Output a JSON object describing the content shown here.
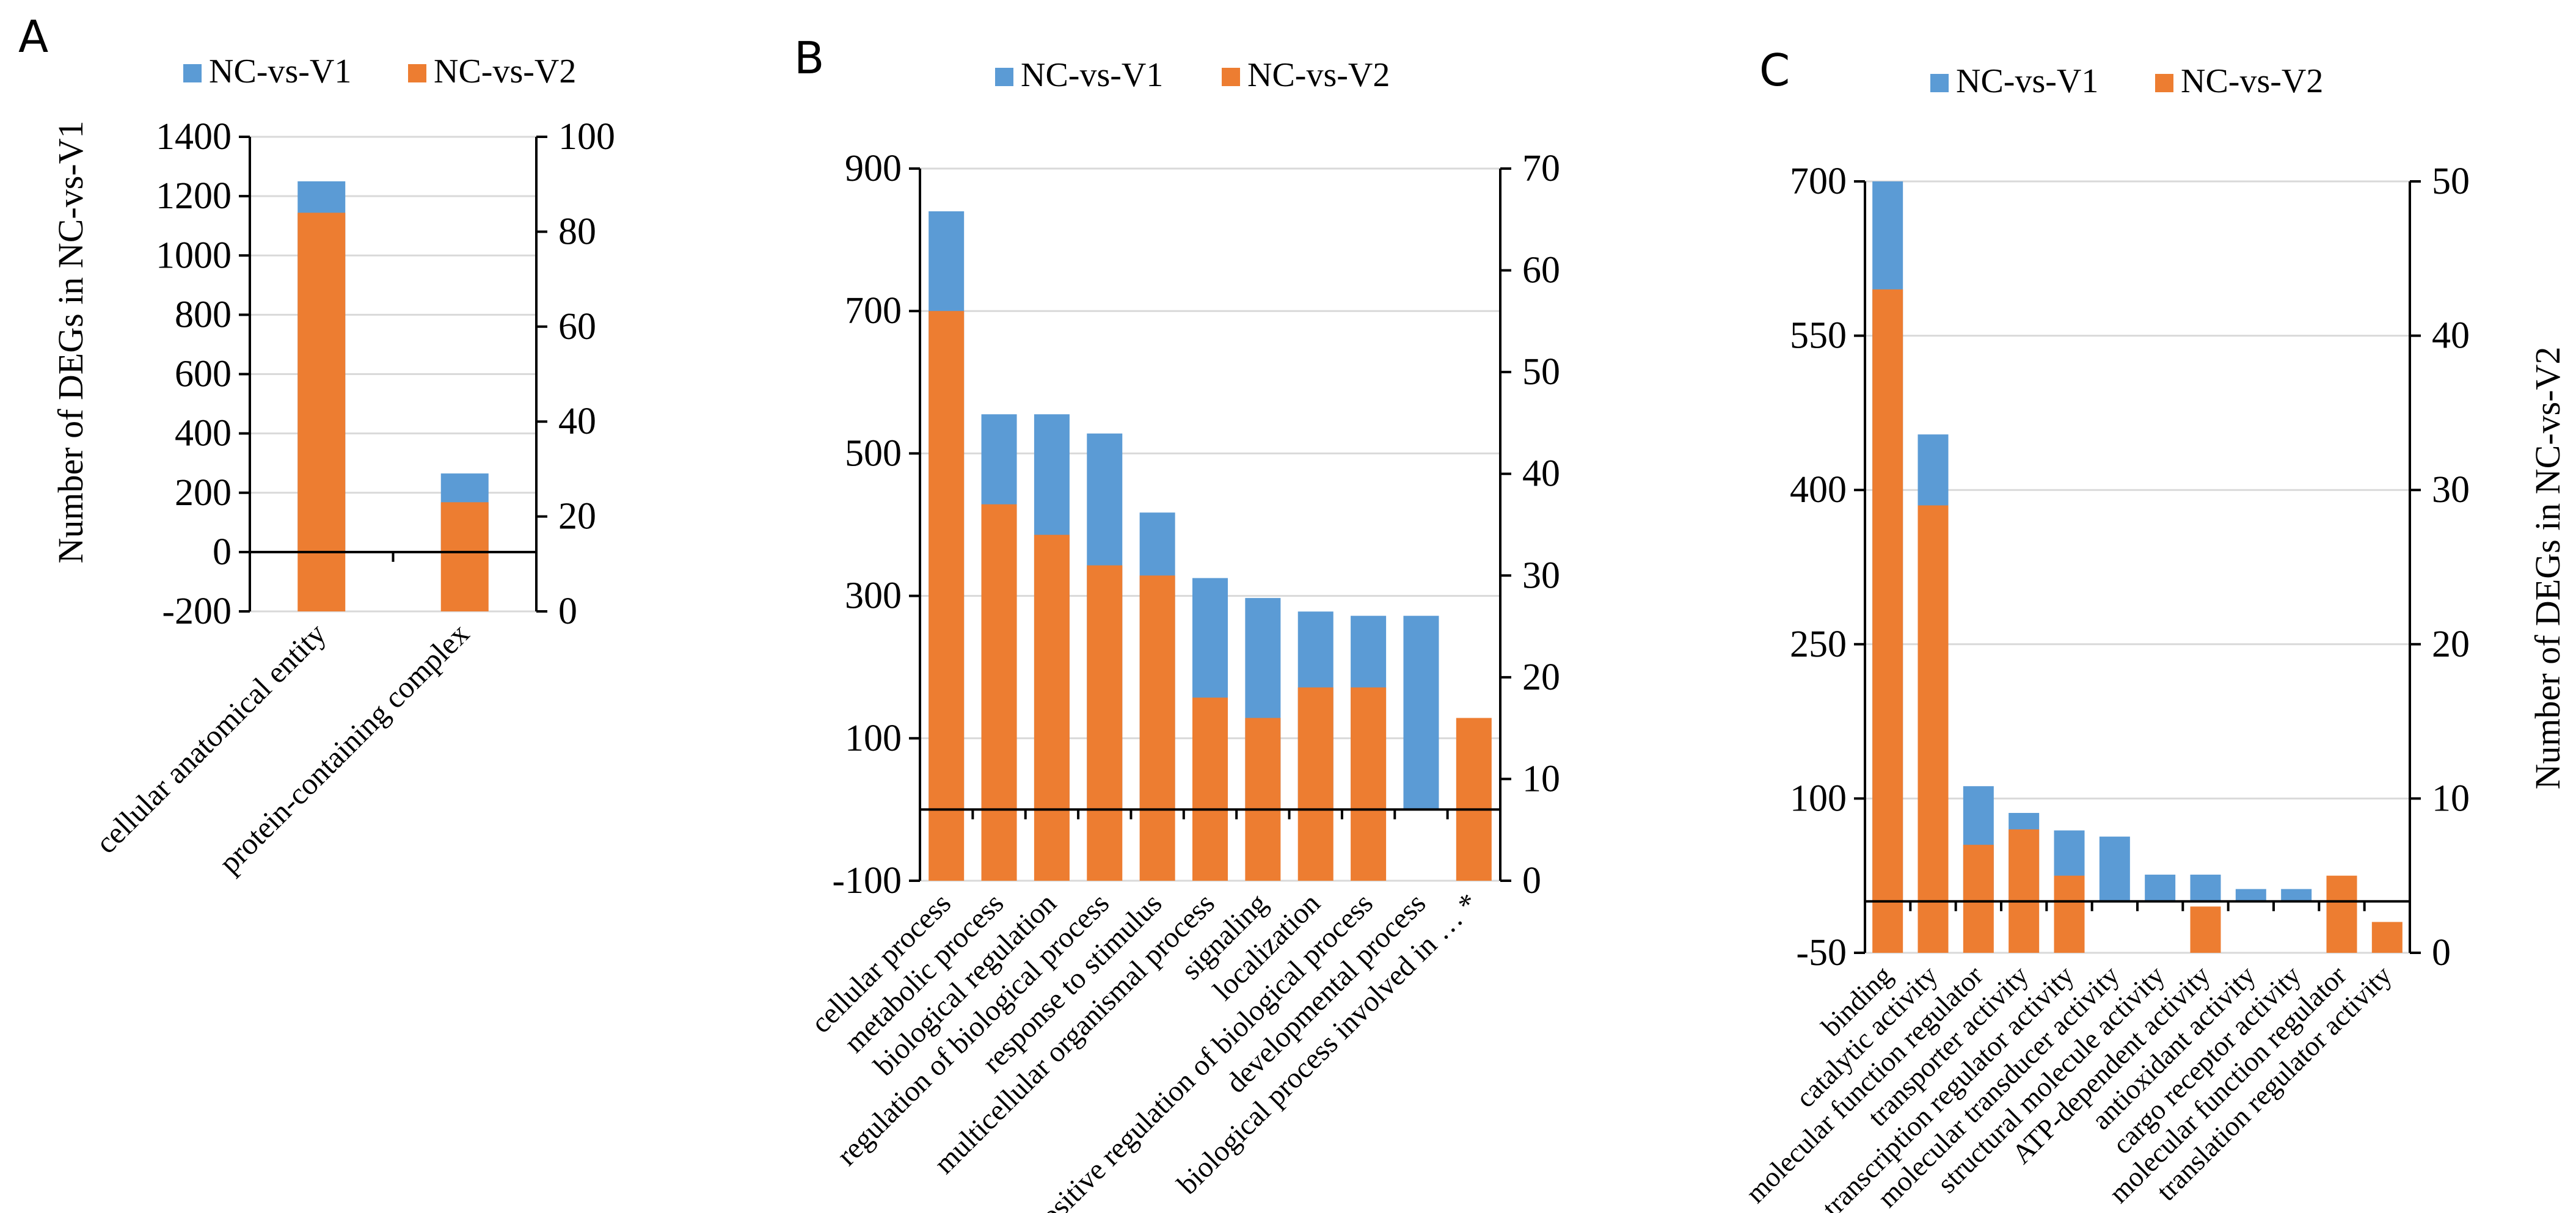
{
  "colors": {
    "v1": "#5b9bd5",
    "v2": "#ed7d31",
    "grid": "#d9d9d9",
    "axis": "#000000"
  },
  "chart_data": [
    {
      "panel": "A",
      "type": "bar",
      "legend": [
        "NC-vs-V1",
        "NC-vs-V2"
      ],
      "legend_position": "top",
      "ylabel_left": "Number of DEGs in NC-vs-V1",
      "ylabel_right": "",
      "ylim_left": [
        -200,
        1400
      ],
      "yticks_left": [
        -200,
        0,
        200,
        400,
        600,
        800,
        1000,
        1200,
        1400
      ],
      "ylim_right": [
        0,
        100
      ],
      "yticks_right": [
        0,
        20,
        40,
        60,
        80,
        100
      ],
      "grid": true,
      "categories": [
        "cellular anatomical entity",
        "protein-containing complex"
      ],
      "series": [
        {
          "name": "NC-vs-V1",
          "axis": "left",
          "values": [
            1250,
            265
          ]
        },
        {
          "name": "NC-vs-V2",
          "axis": "right",
          "values": [
            84,
            23
          ]
        }
      ]
    },
    {
      "panel": "B",
      "type": "bar",
      "legend": [
        "NC-vs-V1",
        "NC-vs-V2"
      ],
      "legend_position": "top",
      "ylabel_left": "",
      "ylabel_right": "",
      "ylim_left": [
        -100,
        900
      ],
      "yticks_left": [
        -100,
        100,
        300,
        500,
        700,
        900
      ],
      "ylim_right": [
        0,
        70
      ],
      "yticks_right": [
        0,
        10,
        20,
        30,
        40,
        50,
        60,
        70
      ],
      "grid": true,
      "categories": [
        "cellular process",
        "metabolic process",
        "biological regulation",
        "regulation of biological process",
        "response to stimulus",
        "multicellular organismal process",
        "signaling",
        "localization",
        "positive regulation of biological process",
        "developmental process",
        "biological process involved in … *"
      ],
      "series": [
        {
          "name": "NC-vs-V1",
          "axis": "left",
          "values": [
            840,
            555,
            555,
            528,
            417,
            325,
            297,
            278,
            272,
            272,
            0
          ]
        },
        {
          "name": "NC-vs-V2",
          "axis": "right",
          "values": [
            56,
            37,
            34,
            31,
            30,
            18,
            16,
            19,
            19,
            0,
            16
          ]
        }
      ]
    },
    {
      "panel": "C",
      "type": "bar",
      "legend": [
        "NC-vs-V1",
        "NC-vs-V2"
      ],
      "legend_position": "top",
      "ylabel_left": "",
      "ylabel_right": "Number of DEGs in NC-vs-V2",
      "ylim_left": [
        -50,
        700
      ],
      "yticks_left": [
        -50,
        100,
        250,
        400,
        550,
        700
      ],
      "ylim_right": [
        0,
        50
      ],
      "yticks_right": [
        0,
        10,
        20,
        30,
        40,
        50
      ],
      "grid": true,
      "categories": [
        "binding",
        "catalytic activity",
        "molecular function regulator",
        "transporter activity",
        "transcription regulator activity",
        "molecular transducer activity",
        "structural molecule activity",
        "ATP-dependent activity",
        "antioxidant activity",
        "cargo receptor activity",
        "molecular function regulator",
        "translation regulator activity"
      ],
      "series": [
        {
          "name": "NC-vs-V1",
          "axis": "left",
          "values": [
            700,
            454,
            112,
            86,
            69,
            63,
            26,
            26,
            12,
            12,
            0,
            0
          ]
        },
        {
          "name": "NC-vs-V2",
          "axis": "right",
          "values": [
            43,
            29,
            7,
            8,
            5,
            0,
            0,
            3,
            0,
            0,
            5,
            2
          ]
        }
      ]
    }
  ]
}
